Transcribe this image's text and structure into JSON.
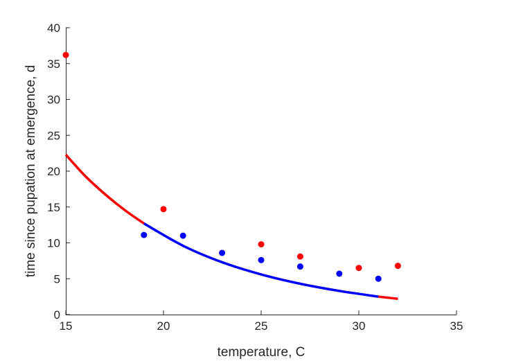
{
  "chart_data": {
    "type": "scatter",
    "title": "",
    "xlabel": "temperature, C",
    "ylabel": "time since pupation at emergence, d",
    "xlim": [
      15,
      35
    ],
    "ylim": [
      0,
      40
    ],
    "xticks": [
      15,
      20,
      25,
      30,
      35
    ],
    "yticks": [
      0,
      5,
      10,
      15,
      20,
      25,
      30,
      35,
      40
    ],
    "grid": false,
    "legend": "none",
    "series": [
      {
        "kind": "points",
        "color": "#ff0000",
        "x": [
          15,
          20,
          25,
          27,
          30,
          32
        ],
        "y": [
          36.2,
          14.7,
          9.8,
          8.1,
          6.5,
          6.8
        ]
      },
      {
        "kind": "points",
        "color": "#0000ff",
        "x": [
          19,
          21,
          23,
          25,
          27,
          29,
          31
        ],
        "y": [
          11.1,
          11.0,
          8.6,
          7.6,
          6.7,
          5.7,
          5.0
        ]
      },
      {
        "kind": "line",
        "color": "#ff0000",
        "x": [
          15,
          16,
          17,
          18,
          19
        ],
        "y": [
          22.3,
          19.3,
          16.8,
          14.6,
          12.7
        ]
      },
      {
        "kind": "line",
        "color": "#0000ff",
        "x": [
          19,
          21,
          23,
          25,
          27,
          29,
          31
        ],
        "y": [
          12.7,
          9.6,
          7.3,
          5.6,
          4.3,
          3.3,
          2.5
        ]
      },
      {
        "kind": "line",
        "color": "#ff0000",
        "x": [
          31,
          32
        ],
        "y": [
          2.5,
          2.2
        ]
      }
    ]
  }
}
